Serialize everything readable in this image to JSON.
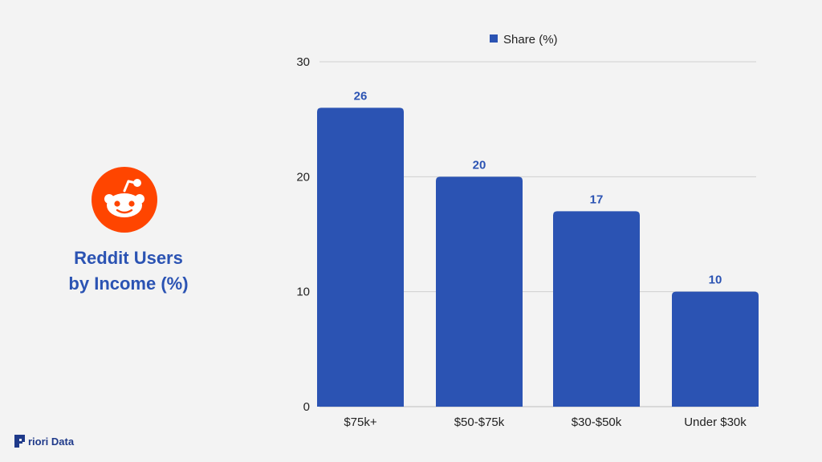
{
  "title": {
    "line1": "Reddit Users",
    "line2": "by Income (%)"
  },
  "logo": {
    "icon": "reddit-logo-icon",
    "color": "#ff4500"
  },
  "brand": {
    "text": "riori Data",
    "icon": "priori-data-logo-icon",
    "color": "#1f3a8a"
  },
  "chart_data": {
    "type": "bar",
    "categories": [
      "$75k+",
      "$50-$75k",
      "$30-$50k",
      "Under $30k"
    ],
    "series": [
      {
        "name": "Share (%)",
        "values": [
          26,
          20,
          17,
          10
        ],
        "color": "#2b53b3"
      }
    ],
    "ylim": [
      0,
      30
    ],
    "yticks": [
      0,
      10,
      20,
      30
    ],
    "grid": true,
    "legend": "top-center",
    "data_labels": true
  }
}
